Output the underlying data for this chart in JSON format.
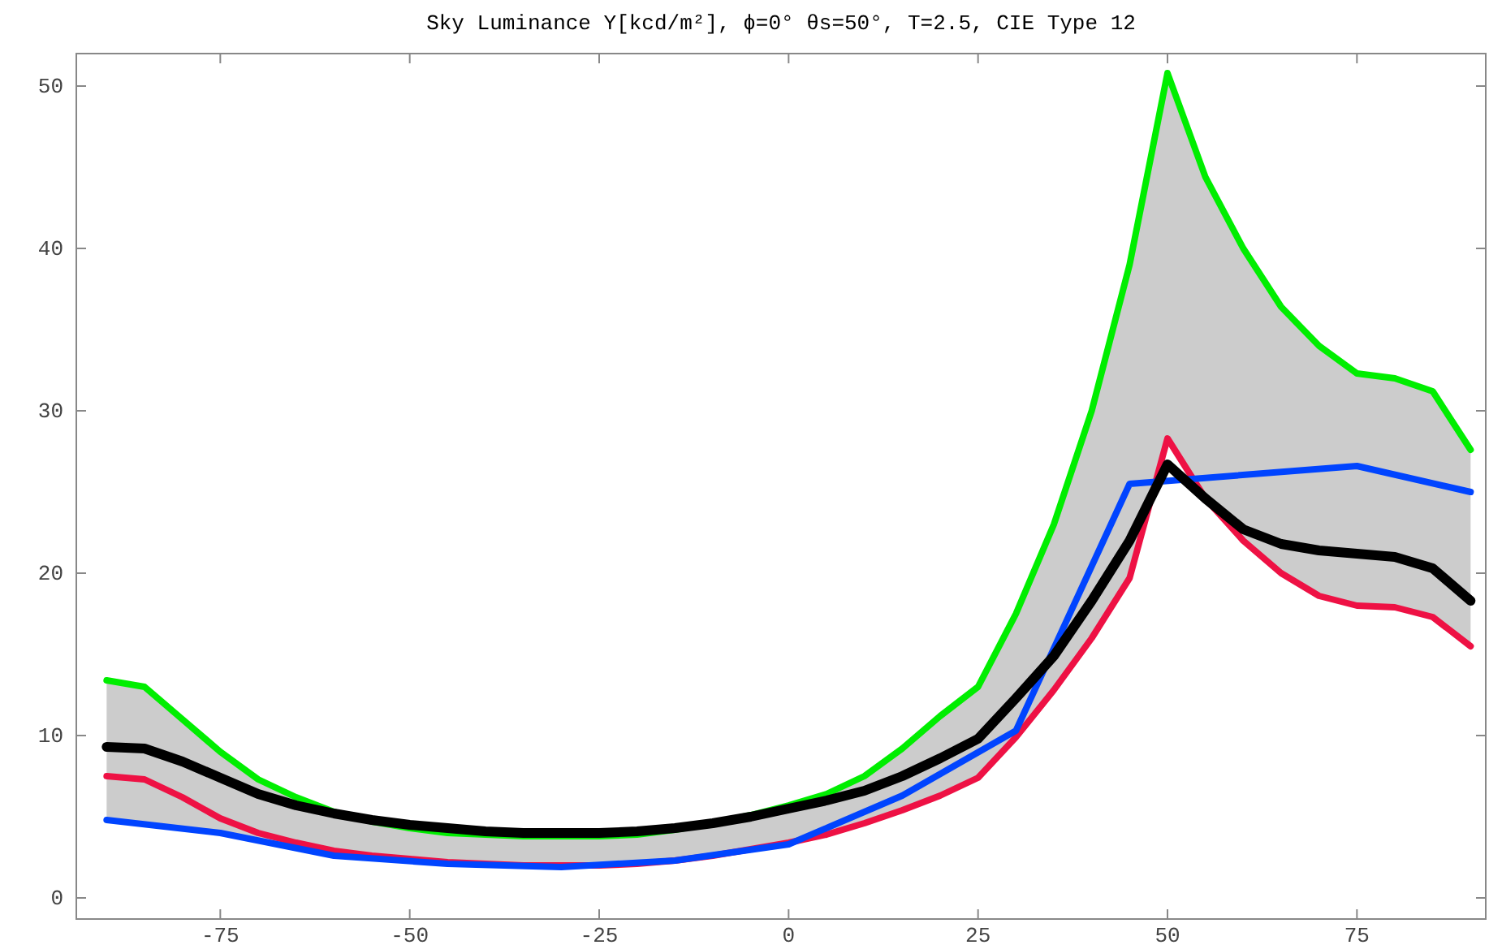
{
  "chart_data": {
    "type": "line",
    "title": "Sky Luminance Y[kcd/m²], ϕ=0° θs=50°, T=2.5, CIE Type 12",
    "x": [
      -90,
      -85,
      -80,
      -75,
      -70,
      -65,
      -60,
      -55,
      -50,
      -45,
      -40,
      -35,
      -30,
      -25,
      -20,
      -15,
      -10,
      -5,
      0,
      5,
      10,
      15,
      20,
      25,
      30,
      35,
      40,
      45,
      50,
      55,
      60,
      65,
      70,
      75,
      80,
      85,
      90
    ],
    "series": [
      {
        "color": "#00ee00",
        "values": [
          13.4,
          13,
          11,
          9,
          7.3,
          6.2,
          5.3,
          4.7,
          4.3,
          4.0,
          3.9,
          3.8,
          3.8,
          3.8,
          3.9,
          4.2,
          4.6,
          5.1,
          5.7,
          6.4,
          7.5,
          9.2,
          11.2,
          13,
          17.5,
          23,
          30,
          39,
          50.8,
          44.4,
          40,
          36.4,
          34,
          32.3,
          32,
          31.2,
          27.6
        ]
      },
      {
        "color": "#ee1144",
        "values": [
          7.5,
          7.3,
          6.2,
          4.9,
          4,
          3.4,
          2.9,
          2.6,
          2.4,
          2.2,
          2.1,
          2.0,
          2.0,
          2.0,
          2.1,
          2.3,
          2.6,
          3.0,
          3.4,
          3.9,
          4.6,
          5.4,
          6.3,
          7.4,
          9.9,
          12.8,
          16,
          19.7,
          28.3,
          24.6,
          22,
          20,
          18.6,
          18,
          17.9,
          17.3,
          15.5
        ]
      },
      {
        "color": "#0044ff",
        "x": [
          -90,
          -75,
          -60,
          -45,
          -30,
          -15,
          0,
          15,
          30,
          45,
          75,
          90
        ],
        "values": [
          4.8,
          4.0,
          2.6,
          2.1,
          1.9,
          2.3,
          3.3,
          6.3,
          10.3,
          25.5,
          26.6,
          25
        ]
      },
      {
        "color": "#000000",
        "values": [
          9.3,
          9.2,
          8.4,
          7.4,
          6.4,
          5.7,
          5.2,
          4.8,
          4.5,
          4.3,
          4.1,
          4.0,
          4.0,
          4.0,
          4.1,
          4.3,
          4.6,
          5.0,
          5.5,
          6.0,
          6.6,
          7.5,
          8.6,
          9.8,
          12.3,
          14.9,
          18.3,
          22,
          26.7,
          24.6,
          22.7,
          21.8,
          21.4,
          21.2,
          21,
          20.3,
          18.3
        ],
        "lower": [
          4.8,
          4.5,
          4.3,
          4.0,
          3.5,
          3.1,
          2.6,
          2.4,
          2.3,
          2.1,
          2.0,
          1.95,
          1.9,
          2.0,
          2.1,
          2.3,
          2.6,
          2.9,
          3.2,
          3.9,
          4.6,
          5.4,
          6.3,
          7.4,
          9.9,
          12.8,
          16,
          19.7,
          28.3,
          24.6,
          22,
          20,
          18.6,
          18,
          17.9,
          17.3,
          15.5
        ],
        "upper": [
          13.4,
          13,
          11,
          9,
          7.3,
          6.2,
          5.3,
          4.7,
          4.3,
          4.0,
          3.9,
          3.8,
          3.8,
          3.8,
          3.9,
          4.2,
          4.6,
          5.1,
          5.7,
          6.4,
          7.5,
          9.2,
          11.2,
          13,
          17.5,
          23,
          30,
          39,
          50.8,
          44.4,
          40,
          36.4,
          34,
          32.3,
          32,
          31.2,
          27.6
        ]
      }
    ],
    "xlim": [
      -94,
      92
    ],
    "ylim": [
      -1.3,
      52
    ],
    "xticks": [
      -75,
      -50,
      -25,
      0,
      25,
      50,
      75
    ],
    "yticks": [
      0,
      10,
      20,
      30,
      40,
      50
    ],
    "grid": false,
    "marker": "none",
    "line_style": "solid"
  }
}
